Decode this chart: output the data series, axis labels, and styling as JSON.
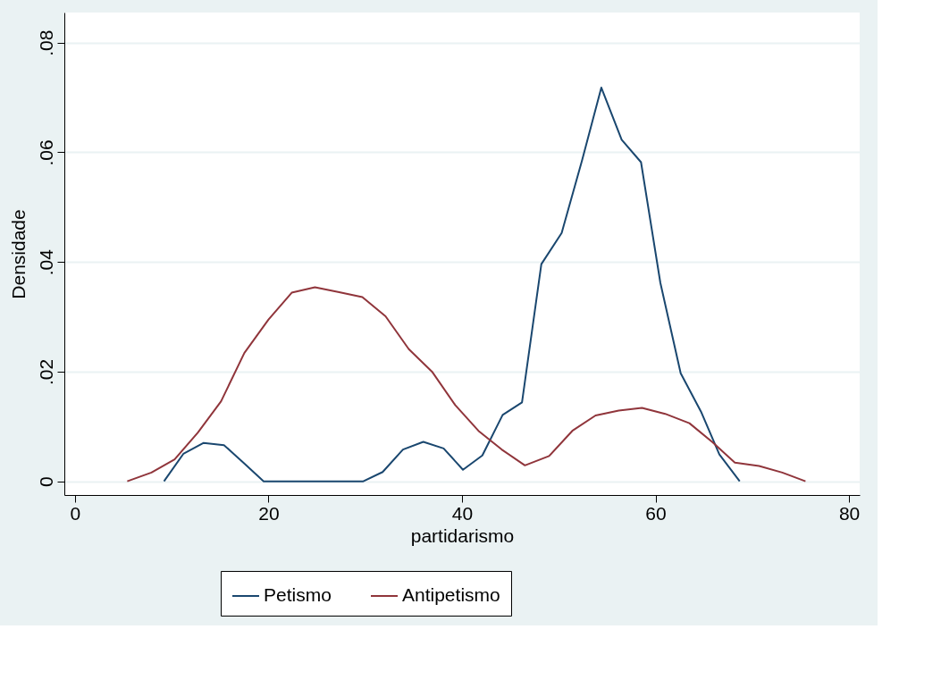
{
  "chart_data": {
    "type": "line",
    "xlabel": "partidarismo",
    "ylabel": "Densidade",
    "xlim": [
      -1.1,
      81.1
    ],
    "ylim": [
      -0.0025,
      0.0855
    ],
    "xticks": [
      0,
      20,
      40,
      60,
      80
    ],
    "yticks": [
      {
        "value": 0,
        "label": "0"
      },
      {
        "value": 0.02,
        "label": ".02"
      },
      {
        "value": 0.04,
        "label": ".04"
      },
      {
        "value": 0.06,
        "label": ".06"
      },
      {
        "value": 0.08,
        "label": ".08"
      }
    ],
    "grid": "y",
    "legend": "bottom",
    "marker": "none",
    "line_style": "solid",
    "series": [
      {
        "name": "Petismo",
        "color": "#1a476f",
        "x": [
          9.2,
          11.2,
          13.3,
          15.4,
          17.4,
          19.5,
          21.5,
          23.6,
          25.6,
          27.7,
          29.8,
          31.8,
          33.9,
          36.0,
          38.1,
          40.1,
          42.1,
          44.2,
          46.2,
          48.2,
          50.3,
          52.4,
          54.4,
          56.5,
          58.5,
          60.5,
          62.6,
          64.7,
          66.6,
          68.7
        ],
        "values": [
          0,
          0.005,
          0.007,
          0.0066,
          0.0034,
          0,
          0,
          0,
          0,
          0,
          0,
          0.0017,
          0.0058,
          0.0072,
          0.006,
          0.0021,
          0.0047,
          0.0121,
          0.0144,
          0.0396,
          0.0453,
          0.0585,
          0.0718,
          0.0623,
          0.0582,
          0.0362,
          0.0197,
          0.0127,
          0.0049,
          0
        ]
      },
      {
        "name": "Antipetismo",
        "color": "#90353b",
        "x": [
          5.4,
          7.9,
          10.3,
          12.7,
          15.1,
          17.5,
          20.0,
          22.4,
          24.8,
          27.3,
          29.7,
          32.1,
          34.5,
          36.9,
          39.3,
          41.7,
          44.1,
          46.5,
          49.0,
          51.4,
          53.8,
          56.2,
          58.6,
          61.0,
          63.5,
          65.9,
          68.2,
          70.7,
          73.1,
          75.5
        ],
        "values": [
          0,
          0.0016,
          0.004,
          0.0089,
          0.0146,
          0.0234,
          0.0295,
          0.0344,
          0.0354,
          0.0345,
          0.0336,
          0.0301,
          0.0241,
          0.02,
          0.0139,
          0.0092,
          0.0058,
          0.0029,
          0.0046,
          0.0092,
          0.012,
          0.0129,
          0.0134,
          0.0123,
          0.0106,
          0.0071,
          0.0034,
          0.0028,
          0.0016,
          0
        ]
      }
    ]
  }
}
